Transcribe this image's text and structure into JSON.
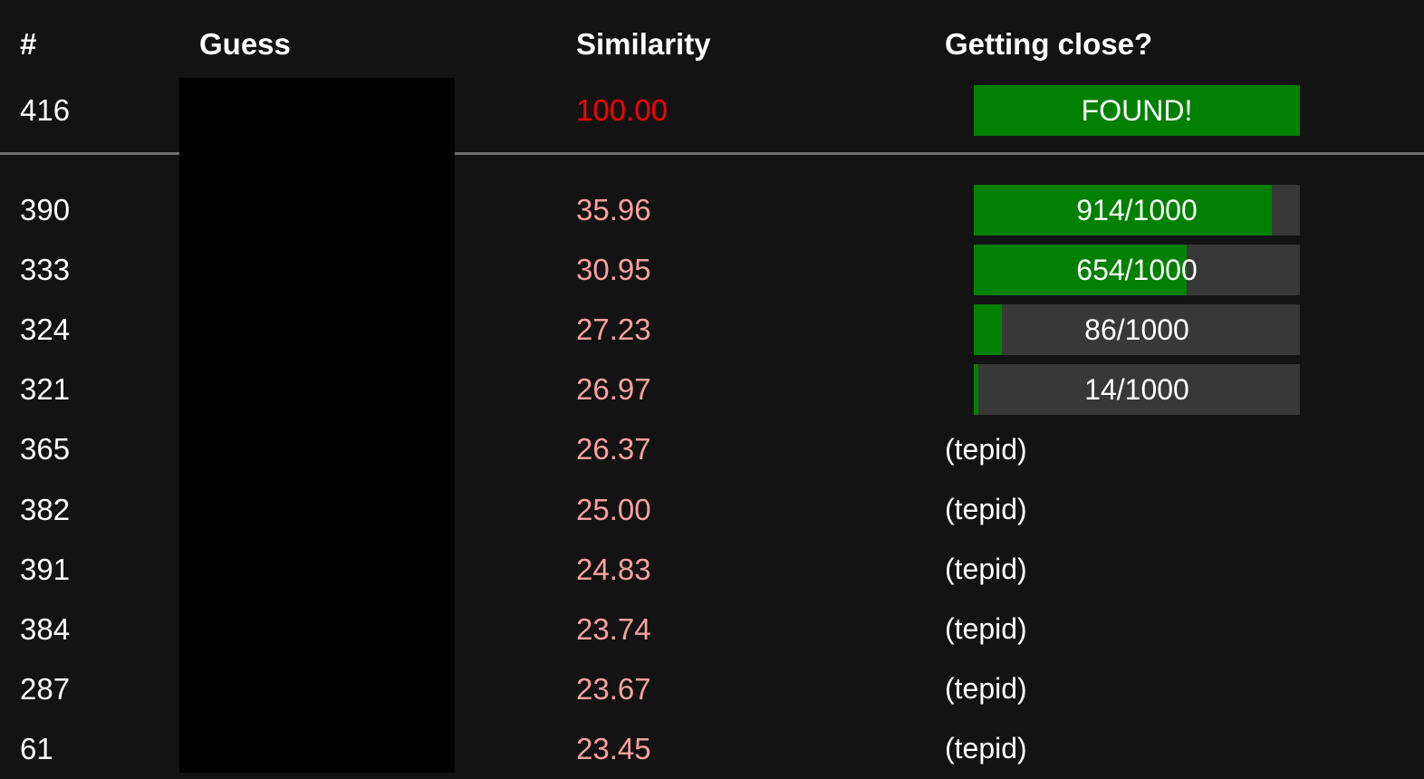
{
  "colors": {
    "background": "#131313",
    "text": "#ffffff",
    "red": "#fa0000",
    "pink": "#f8a0a2",
    "green": "#028002",
    "bar_bg": "#383838",
    "divider": "#6e6e6e",
    "redaction": "#000000"
  },
  "table": {
    "columns": {
      "rank": "#",
      "guess": "Guess",
      "similarity": "Similarity",
      "closeness": "Getting close?"
    },
    "guess_column_redacted": true,
    "found_row": {
      "rank": "416",
      "similarity": "100.00",
      "closeness": {
        "type": "found",
        "label": "FOUND!"
      }
    },
    "rows": [
      {
        "rank": "390",
        "similarity": "35.96",
        "closeness": {
          "type": "bar",
          "label": "914/1000",
          "value": 914,
          "max": 1000
        }
      },
      {
        "rank": "333",
        "similarity": "30.95",
        "closeness": {
          "type": "bar",
          "label": "654/1000",
          "value": 654,
          "max": 1000
        }
      },
      {
        "rank": "324",
        "similarity": "27.23",
        "closeness": {
          "type": "bar",
          "label": "86/1000",
          "value": 86,
          "max": 1000
        }
      },
      {
        "rank": "321",
        "similarity": "26.97",
        "closeness": {
          "type": "bar",
          "label": "14/1000",
          "value": 14,
          "max": 1000
        }
      },
      {
        "rank": "365",
        "similarity": "26.37",
        "closeness": {
          "type": "text",
          "label": "(tepid)"
        }
      },
      {
        "rank": "382",
        "similarity": "25.00",
        "closeness": {
          "type": "text",
          "label": "(tepid)"
        }
      },
      {
        "rank": "391",
        "similarity": "24.83",
        "closeness": {
          "type": "text",
          "label": "(tepid)"
        }
      },
      {
        "rank": "384",
        "similarity": "23.74",
        "closeness": {
          "type": "text",
          "label": "(tepid)"
        }
      },
      {
        "rank": "287",
        "similarity": "23.67",
        "closeness": {
          "type": "text",
          "label": "(tepid)"
        }
      },
      {
        "rank": "61",
        "similarity": "23.45",
        "closeness": {
          "type": "text",
          "label": "(tepid)"
        }
      }
    ]
  }
}
